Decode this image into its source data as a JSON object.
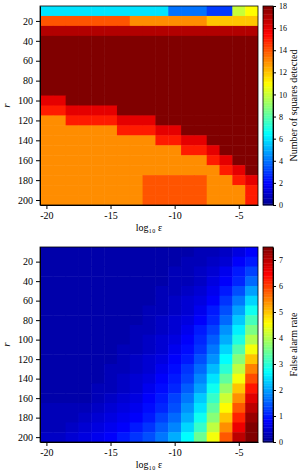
{
  "chart_data": [
    {
      "type": "heatmap",
      "xlabel": "log₁₀ ε",
      "ylabel": "r",
      "x": [
        -20,
        -19,
        -18,
        -17,
        -16,
        -15,
        -14,
        -13,
        -12,
        -11,
        -10,
        -9,
        -8,
        -7,
        -6,
        -5,
        -4
      ],
      "y": [
        10,
        20,
        30,
        40,
        50,
        60,
        70,
        80,
        90,
        100,
        110,
        120,
        130,
        140,
        150,
        160,
        170,
        180,
        190,
        200
      ],
      "xlim": [
        -20.5,
        -3.5
      ],
      "ylim": [
        5,
        205
      ],
      "xticks": [
        -20,
        -15,
        -10,
        -5
      ],
      "yticks": [
        20,
        40,
        60,
        80,
        100,
        120,
        140,
        160,
        180,
        200
      ],
      "colorbar_label": "Number of squares detected",
      "colorbar_lim": [
        0,
        18
      ],
      "colorbar_ticks": [
        0,
        2,
        4,
        6,
        8,
        10,
        12,
        14,
        16,
        18
      ],
      "z": [
        [
          6,
          6,
          6,
          6,
          6,
          6,
          6,
          6,
          6,
          6,
          4,
          4,
          4,
          3,
          3,
          10,
          11
        ],
        [
          14,
          14,
          14,
          14,
          14,
          14,
          14,
          13,
          13,
          13,
          13,
          13,
          13,
          12,
          12,
          12,
          12
        ],
        [
          17,
          17,
          17,
          17,
          17,
          17,
          17,
          17,
          17,
          17,
          17,
          17,
          17,
          17,
          17,
          17,
          17
        ],
        [
          18,
          18,
          18,
          18,
          18,
          18,
          18,
          18,
          18,
          18,
          18,
          18,
          18,
          18,
          18,
          18,
          18
        ],
        [
          18,
          18,
          18,
          18,
          18,
          18,
          18,
          18,
          18,
          18,
          18,
          18,
          18,
          18,
          18,
          18,
          18
        ],
        [
          18,
          18,
          18,
          18,
          18,
          18,
          18,
          18,
          18,
          18,
          18,
          18,
          18,
          18,
          18,
          18,
          18
        ],
        [
          18,
          18,
          18,
          18,
          18,
          18,
          18,
          18,
          18,
          18,
          18,
          18,
          18,
          18,
          18,
          18,
          18
        ],
        [
          18,
          18,
          18,
          18,
          18,
          18,
          18,
          18,
          18,
          18,
          18,
          18,
          18,
          18,
          18,
          18,
          18
        ],
        [
          18,
          18,
          18,
          18,
          18,
          18,
          18,
          18,
          18,
          18,
          18,
          18,
          18,
          18,
          18,
          18,
          18
        ],
        [
          16,
          16,
          18,
          18,
          18,
          18,
          18,
          18,
          18,
          18,
          18,
          18,
          18,
          18,
          18,
          18,
          18
        ],
        [
          15,
          15,
          16,
          16,
          16,
          16,
          18,
          18,
          18,
          18,
          18,
          18,
          18,
          18,
          18,
          18,
          18
        ],
        [
          13,
          13,
          15,
          15,
          15,
          15,
          16,
          16,
          16,
          18,
          18,
          18,
          18,
          18,
          18,
          18,
          18
        ],
        [
          13,
          13,
          13,
          13,
          13,
          13,
          15,
          15,
          15,
          16,
          16,
          18,
          18,
          18,
          18,
          18,
          18
        ],
        [
          13,
          13,
          13,
          13,
          13,
          13,
          13,
          13,
          13,
          15,
          15,
          16,
          16,
          18,
          18,
          18,
          18
        ],
        [
          13,
          13,
          13,
          13,
          13,
          13,
          13,
          13,
          13,
          13,
          13,
          15,
          15,
          16,
          18,
          18,
          18
        ],
        [
          13,
          13,
          13,
          13,
          13,
          13,
          13,
          13,
          13,
          13,
          13,
          13,
          13,
          15,
          16,
          18,
          18
        ],
        [
          13,
          13,
          13,
          13,
          13,
          13,
          13,
          13,
          13,
          13,
          13,
          13,
          13,
          13,
          15,
          16,
          18
        ],
        [
          13,
          13,
          13,
          13,
          13,
          13,
          13,
          13,
          14,
          14,
          14,
          14,
          14,
          13,
          13,
          15,
          16
        ],
        [
          13,
          13,
          13,
          13,
          13,
          13,
          13,
          13,
          14,
          14,
          14,
          14,
          14,
          13,
          13,
          13,
          15
        ],
        [
          13,
          13,
          13,
          13,
          13,
          13,
          13,
          13,
          14,
          14,
          14,
          14,
          14,
          13,
          13,
          13,
          15
        ]
      ]
    },
    {
      "type": "heatmap",
      "xlabel": "log₁₀ ε",
      "ylabel": "r",
      "x": [
        -20,
        -19,
        -18,
        -17,
        -16,
        -15,
        -14,
        -13,
        -12,
        -11,
        -10,
        -9,
        -8,
        -7,
        -6,
        -5,
        -4
      ],
      "y": [
        10,
        20,
        30,
        40,
        50,
        60,
        70,
        80,
        90,
        100,
        110,
        120,
        130,
        140,
        150,
        160,
        170,
        180,
        190,
        200
      ],
      "xlim": [
        -20.5,
        -3.5
      ],
      "ylim": [
        5,
        205
      ],
      "xticks": [
        -20,
        -15,
        -10,
        -5
      ],
      "yticks": [
        20,
        40,
        60,
        80,
        100,
        120,
        140,
        160,
        180,
        200
      ],
      "colorbar_label": "False alarm rate",
      "colorbar_lim": [
        0,
        7.5
      ],
      "colorbar_ticks": [
        0,
        1,
        2,
        3,
        4,
        5,
        6,
        7
      ],
      "z": [
        [
          0.2,
          0.2,
          0.2,
          0.2,
          0.2,
          0.2,
          0.2,
          0.2,
          0.2,
          0.2,
          0.2,
          0.2,
          0.3,
          0.3,
          0.4,
          0.6,
          0.8
        ],
        [
          0.2,
          0.2,
          0.2,
          0.2,
          0.2,
          0.2,
          0.2,
          0.2,
          0.2,
          0.2,
          0.2,
          0.3,
          0.3,
          0.4,
          0.5,
          0.8,
          1.0
        ],
        [
          0.2,
          0.2,
          0.2,
          0.2,
          0.2,
          0.2,
          0.2,
          0.2,
          0.2,
          0.2,
          0.3,
          0.3,
          0.4,
          0.5,
          0.7,
          1.0,
          1.3
        ],
        [
          0.2,
          0.2,
          0.2,
          0.2,
          0.2,
          0.2,
          0.2,
          0.2,
          0.2,
          0.2,
          0.3,
          0.3,
          0.4,
          0.6,
          0.8,
          1.1,
          1.6
        ],
        [
          0.2,
          0.2,
          0.2,
          0.2,
          0.2,
          0.2,
          0.2,
          0.2,
          0.2,
          0.3,
          0.3,
          0.4,
          0.5,
          0.7,
          1.0,
          1.4,
          2.0
        ],
        [
          0.2,
          0.2,
          0.2,
          0.2,
          0.2,
          0.2,
          0.2,
          0.2,
          0.2,
          0.3,
          0.4,
          0.5,
          0.6,
          0.8,
          1.2,
          1.7,
          2.4
        ],
        [
          0.2,
          0.2,
          0.2,
          0.2,
          0.2,
          0.2,
          0.2,
          0.2,
          0.3,
          0.3,
          0.4,
          0.5,
          0.7,
          1.0,
          1.4,
          2.0,
          2.8
        ],
        [
          0.2,
          0.2,
          0.2,
          0.2,
          0.2,
          0.2,
          0.2,
          0.2,
          0.3,
          0.4,
          0.5,
          0.6,
          0.8,
          1.1,
          1.6,
          2.3,
          3.2
        ],
        [
          0.2,
          0.2,
          0.2,
          0.2,
          0.2,
          0.2,
          0.2,
          0.3,
          0.3,
          0.4,
          0.5,
          0.7,
          1.0,
          1.3,
          1.9,
          2.6,
          3.6
        ],
        [
          0.2,
          0.2,
          0.2,
          0.2,
          0.2,
          0.2,
          0.2,
          0.3,
          0.4,
          0.5,
          0.6,
          0.8,
          1.1,
          1.5,
          2.1,
          2.9,
          4.0
        ],
        [
          0.2,
          0.2,
          0.2,
          0.2,
          0.2,
          0.2,
          0.3,
          0.3,
          0.4,
          0.5,
          0.7,
          0.9,
          1.2,
          1.7,
          2.4,
          3.3,
          4.5
        ],
        [
          0.2,
          0.2,
          0.2,
          0.2,
          0.2,
          0.2,
          0.3,
          0.4,
          0.5,
          0.6,
          0.8,
          1.0,
          1.4,
          1.9,
          2.7,
          3.7,
          5.0
        ],
        [
          0.2,
          0.2,
          0.2,
          0.2,
          0.2,
          0.3,
          0.3,
          0.4,
          0.5,
          0.7,
          0.9,
          1.2,
          1.6,
          2.2,
          3.0,
          4.1,
          5.5
        ],
        [
          0.2,
          0.2,
          0.2,
          0.2,
          0.2,
          0.3,
          0.4,
          0.5,
          0.6,
          0.8,
          1.0,
          1.3,
          1.8,
          2.5,
          3.4,
          4.5,
          5.9
        ],
        [
          0.2,
          0.2,
          0.2,
          0.2,
          0.3,
          0.3,
          0.4,
          0.5,
          0.7,
          0.9,
          1.1,
          1.5,
          2.0,
          2.8,
          3.8,
          5.0,
          6.3
        ],
        [
          0.2,
          0.2,
          0.2,
          0.2,
          0.3,
          0.4,
          0.5,
          0.6,
          0.8,
          1.0,
          1.3,
          1.7,
          2.3,
          3.1,
          4.2,
          5.4,
          6.7
        ],
        [
          0.3,
          0.3,
          0.3,
          0.3,
          0.4,
          0.5,
          0.6,
          0.7,
          0.9,
          1.1,
          1.4,
          1.9,
          2.5,
          3.4,
          4.6,
          5.8,
          7.0
        ],
        [
          0.3,
          0.3,
          0.3,
          0.4,
          0.5,
          0.6,
          0.7,
          0.8,
          1.0,
          1.3,
          1.6,
          2.1,
          2.8,
          3.7,
          5.0,
          6.2,
          7.3
        ],
        [
          0.3,
          0.3,
          0.4,
          0.5,
          0.6,
          0.7,
          0.8,
          1.0,
          1.2,
          1.5,
          1.8,
          2.4,
          3.1,
          4.1,
          5.4,
          6.6,
          7.5
        ],
        [
          0.4,
          0.4,
          0.5,
          0.6,
          0.7,
          0.8,
          1.0,
          1.2,
          1.4,
          1.7,
          2.1,
          2.7,
          3.5,
          4.5,
          5.8,
          7.0,
          7.5
        ]
      ]
    }
  ]
}
